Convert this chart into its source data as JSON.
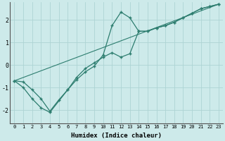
{
  "xlabel": "Humidex (Indice chaleur)",
  "xlim": [
    -0.5,
    23.5
  ],
  "ylim": [
    -2.6,
    2.8
  ],
  "xticks": [
    0,
    1,
    2,
    3,
    4,
    5,
    6,
    7,
    8,
    9,
    10,
    11,
    12,
    13,
    14,
    15,
    16,
    17,
    18,
    19,
    20,
    21,
    22,
    23
  ],
  "yticks": [
    -2,
    -1,
    0,
    1,
    2
  ],
  "bg_color": "#cdeaea",
  "line_color": "#2d7d6f",
  "grid_color": "#add4d4",
  "line1_x": [
    0,
    1,
    2,
    3,
    4,
    6,
    7,
    8,
    9,
    10,
    11,
    12,
    13,
    14,
    15,
    16,
    17,
    18,
    19,
    20,
    21,
    22,
    23
  ],
  "line1_y": [
    -0.7,
    -1.0,
    -1.5,
    -1.9,
    -2.1,
    -1.1,
    -0.65,
    -0.3,
    -0.05,
    0.45,
    1.75,
    2.35,
    2.1,
    1.5,
    1.5,
    1.65,
    1.75,
    1.9,
    2.1,
    2.3,
    2.5,
    2.6,
    2.7
  ],
  "line2_x": [
    0,
    1,
    2,
    3,
    4,
    5,
    6,
    7,
    8,
    9,
    10,
    11,
    12,
    13,
    14,
    15,
    16,
    17,
    18,
    19,
    20,
    21,
    22,
    23
  ],
  "line2_y": [
    -0.7,
    -0.75,
    -1.1,
    -1.5,
    -2.05,
    -1.55,
    -1.1,
    -0.55,
    -0.15,
    0.1,
    0.35,
    0.55,
    0.35,
    0.5,
    1.5,
    1.5,
    1.65,
    1.75,
    1.9,
    2.1,
    2.3,
    2.5,
    2.6,
    2.7
  ],
  "line3_x": [
    0,
    23
  ],
  "line3_y": [
    -0.7,
    2.7
  ]
}
